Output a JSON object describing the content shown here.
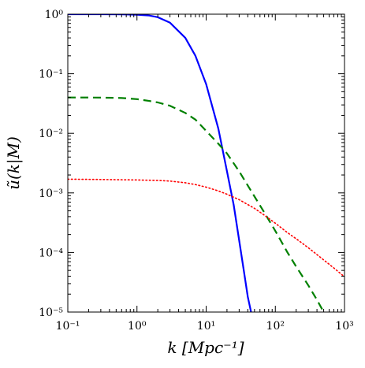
{
  "chart_data": {
    "type": "line",
    "title": "",
    "xlabel": "k [Mpc⁻¹]",
    "ylabel": "ũ(k|M)",
    "x_scale": "log",
    "y_scale": "log",
    "xlim": [
      0.1,
      1000
    ],
    "ylim": [
      1e-05,
      1
    ],
    "grid": false,
    "legend": "none",
    "x_ticks": [
      {
        "value": 0.1,
        "label": "10⁻¹"
      },
      {
        "value": 1,
        "label": "10⁰"
      },
      {
        "value": 10,
        "label": "10¹"
      },
      {
        "value": 100,
        "label": "10²"
      },
      {
        "value": 1000,
        "label": "10³"
      }
    ],
    "y_ticks": [
      {
        "value": 1,
        "label": "10⁰"
      },
      {
        "value": 0.1,
        "label": "10⁻¹"
      },
      {
        "value": 0.01,
        "label": "10⁻²"
      },
      {
        "value": 0.001,
        "label": "10⁻³"
      },
      {
        "value": 0.0001,
        "label": "10⁻⁴"
      },
      {
        "value": 1e-05,
        "label": "10⁻⁵"
      }
    ],
    "series": [
      {
        "color": "#0000ff",
        "dash": "solid",
        "x": [
          0.1,
          0.3,
          0.6,
          1,
          1.5,
          2,
          3,
          5,
          7,
          10,
          15,
          20,
          25,
          30,
          35,
          40,
          44.6
        ],
        "y": [
          1.0,
          0.999,
          0.997,
          0.98,
          0.95,
          0.89,
          0.72,
          0.4,
          0.2,
          0.067,
          0.012,
          0.0023,
          0.00063,
          0.00016,
          5e-05,
          1.8e-05,
          1e-05
        ]
      },
      {
        "color": "#008000",
        "dash": "dashed",
        "x": [
          0.1,
          0.3,
          0.6,
          1,
          1.5,
          2,
          3,
          5,
          7,
          10,
          15,
          20,
          30,
          50,
          70,
          100,
          150,
          200,
          300,
          400,
          500
        ],
        "y": [
          0.04,
          0.0398,
          0.0392,
          0.0375,
          0.035,
          0.033,
          0.029,
          0.022,
          0.017,
          0.011,
          0.0067,
          0.0046,
          0.0023,
          0.00087,
          0.00046,
          0.00023,
          0.0001,
          5.8e-05,
          2.8e-05,
          1.6e-05,
          1e-05
        ]
      },
      {
        "color": "#ff0000",
        "dash": "dotted",
        "x": [
          0.1,
          0.3,
          1,
          2,
          3,
          5,
          7,
          10,
          15,
          20,
          30,
          50,
          70,
          100,
          150,
          200,
          300,
          500,
          700,
          1000
        ],
        "y": [
          0.0017,
          0.00168,
          0.00165,
          0.00162,
          0.00158,
          0.00148,
          0.00138,
          0.00125,
          0.00108,
          0.00095,
          0.00077,
          0.00055,
          0.00042,
          0.00031,
          0.000215,
          0.00017,
          0.00012,
          7.5e-05,
          5.5e-05,
          3.9e-05
        ]
      }
    ]
  }
}
